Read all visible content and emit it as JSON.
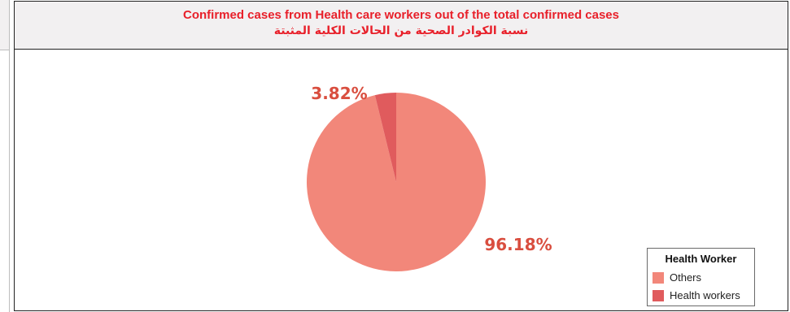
{
  "panel": {
    "title_en": "Confirmed cases from Health care workers out of the total confirmed cases",
    "title_ar": "نسبة الكوادر الصحية من الحالات الكلية المثبتة",
    "title_color": "#e8202a"
  },
  "chart_data": {
    "type": "pie",
    "title": "Confirmed cases from Health care workers out of the total confirmed cases",
    "legend_title": "Health Worker",
    "legend_position": "bottom-right",
    "slices": [
      {
        "name": "Others",
        "value": 96.18,
        "label": "96.18%",
        "color": "#f2877a"
      },
      {
        "name": "Health workers",
        "value": 3.82,
        "label": "3.82%",
        "color": "#e05b5d"
      }
    ],
    "label_color": "#d94e3f"
  }
}
